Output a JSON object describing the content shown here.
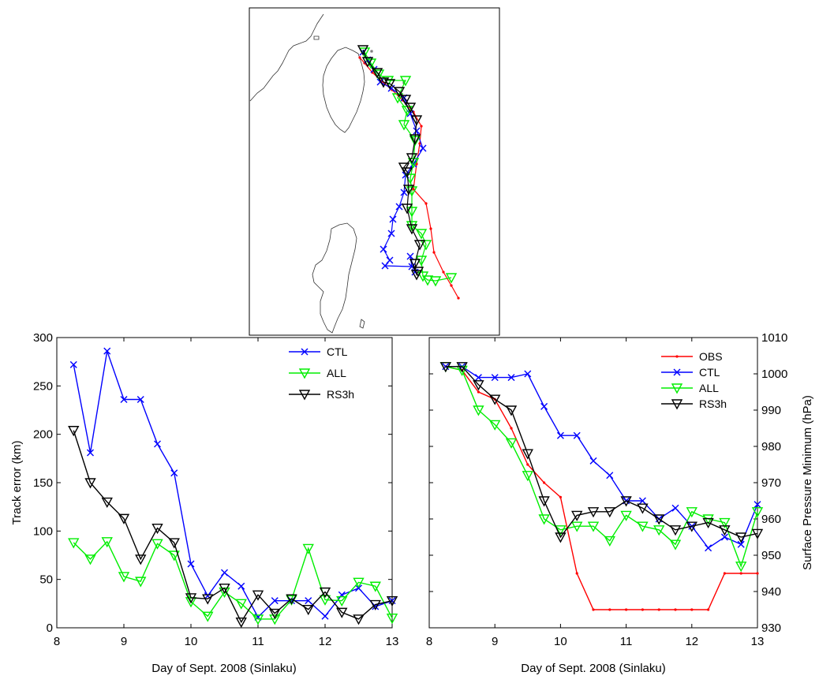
{
  "colors": {
    "obs": "#ff0000",
    "ctl": "#0000ff",
    "all": "#00ee00",
    "rs3h": "#000000"
  },
  "chart_data": [
    {
      "type": "map",
      "description_only": false,
      "series": [
        {
          "name": "OBS",
          "color": "#ff0000",
          "marker": "dot",
          "points": [
            [
              456,
              73
            ],
            [
              462,
              80
            ],
            [
              472,
              92
            ],
            [
              484,
              103
            ],
            [
              497,
              114
            ],
            [
              510,
              127
            ],
            [
              524,
              142
            ],
            [
              534,
              160
            ],
            [
              532,
              182
            ],
            [
              528,
              208
            ],
            [
              524,
              240
            ],
            [
              540,
              258
            ],
            [
              546,
              290
            ],
            [
              550,
              320
            ],
            [
              562,
              345
            ],
            [
              572,
              362
            ],
            [
              581,
              378
            ]
          ]
        },
        {
          "name": "CTL",
          "color": "#0000ff",
          "marker": "x",
          "points": [
            [
              460,
              66
            ],
            [
              466,
              76
            ],
            [
              474,
              88
            ],
            [
              482,
              104
            ],
            [
              496,
              112
            ],
            [
              512,
              124
            ],
            [
              520,
              144
            ],
            [
              528,
              166
            ],
            [
              536,
              188
            ],
            [
              524,
              208
            ],
            [
              514,
              222
            ],
            [
              512,
              244
            ],
            [
              506,
              262
            ],
            [
              498,
              278
            ],
            [
              496,
              296
            ],
            [
              486,
              316
            ],
            [
              494,
              330
            ],
            [
              488,
              337
            ],
            [
              522,
              338
            ],
            [
              520,
              325
            ],
            [
              526,
              345
            ]
          ]
        },
        {
          "name": "ALL",
          "color": "#00ee00",
          "marker": "triangle",
          "points": [
            [
              462,
              66
            ],
            [
              470,
              80
            ],
            [
              480,
              94
            ],
            [
              492,
              102
            ],
            [
              514,
              102
            ],
            [
              504,
              124
            ],
            [
              516,
              140
            ],
            [
              512,
              158
            ],
            [
              526,
              178
            ],
            [
              524,
              206
            ],
            [
              520,
              226
            ],
            [
              522,
              242
            ],
            [
              522,
              268
            ],
            [
              522,
              286
            ],
            [
              534,
              296
            ],
            [
              540,
              310
            ],
            [
              534,
              330
            ],
            [
              536,
              350
            ],
            [
              542,
              355
            ],
            [
              552,
              356
            ],
            [
              572,
              352
            ]
          ]
        },
        {
          "name": "RS3h",
          "color": "#000000",
          "marker": "triangle",
          "points": [
            [
              460,
              63
            ],
            [
              466,
              78
            ],
            [
              478,
              92
            ],
            [
              486,
              104
            ],
            [
              494,
              106
            ],
            [
              506,
              116
            ],
            [
              514,
              126
            ],
            [
              520,
              136
            ],
            [
              528,
              152
            ],
            [
              526,
              176
            ],
            [
              522,
              200
            ],
            [
              512,
              212
            ],
            [
              516,
              218
            ],
            [
              518,
              240
            ],
            [
              516,
              264
            ],
            [
              522,
              290
            ],
            [
              532,
              310
            ],
            [
              526,
              334
            ],
            [
              528,
              348
            ],
            [
              530,
              344
            ]
          ]
        }
      ]
    },
    {
      "type": "line",
      "xlabel": "Day of Sept. 2008 (Sinlaku)",
      "ylabel": "Track error (km)",
      "xlim": [
        8,
        13
      ],
      "ylim": [
        0,
        300
      ],
      "xticks": [
        8,
        9,
        10,
        11,
        12,
        13
      ],
      "yticks": [
        0,
        50,
        100,
        150,
        200,
        250,
        300
      ],
      "legend": "top-right",
      "series": [
        {
          "name": "CTL",
          "color": "#0000ff",
          "marker": "x",
          "x": [
            8.25,
            8.5,
            8.75,
            9.0,
            9.25,
            9.5,
            9.75,
            10.0,
            10.25,
            10.5,
            10.75,
            11.0,
            11.25,
            11.5,
            11.75,
            12.0,
            12.25,
            12.5,
            12.75,
            13.0
          ],
          "y": [
            272,
            181,
            286,
            236,
            236,
            190,
            160,
            66,
            33,
            57,
            43,
            11,
            28,
            28,
            28,
            12,
            34,
            41,
            22,
            28
          ]
        },
        {
          "name": "ALL",
          "color": "#00ee00",
          "marker": "triangle",
          "x": [
            8.25,
            8.5,
            8.75,
            9.0,
            9.25,
            9.5,
            9.75,
            10.0,
            10.25,
            10.5,
            10.75,
            11.0,
            11.25,
            11.5,
            11.75,
            12.0,
            12.25,
            12.5,
            12.75,
            13.0
          ],
          "y": [
            88,
            71,
            89,
            53,
            48,
            87,
            75,
            27,
            12,
            37,
            25,
            9,
            9,
            29,
            82,
            29,
            28,
            47,
            43,
            10
          ]
        },
        {
          "name": "RS3h",
          "color": "#000000",
          "marker": "triangle",
          "x": [
            8.25,
            8.5,
            8.75,
            9.0,
            9.25,
            9.5,
            9.75,
            10.0,
            10.25,
            10.5,
            10.75,
            11.0,
            11.25,
            11.5,
            11.75,
            12.0,
            12.25,
            12.5,
            12.75,
            13.0
          ],
          "y": [
            204,
            150,
            130,
            113,
            71,
            103,
            88,
            31,
            30,
            41,
            6,
            34,
            15,
            30,
            19,
            37,
            16,
            9,
            24,
            28
          ]
        }
      ]
    },
    {
      "type": "line",
      "xlabel": "Day of Sept. 2008 (Sinlaku)",
      "ylabel": "Surface Pressure Minimum (hPa)",
      "xlim": [
        8,
        13
      ],
      "ylim": [
        930,
        1010
      ],
      "xticks": [
        8,
        9,
        10,
        11,
        12,
        13
      ],
      "yticks": [
        930,
        940,
        950,
        960,
        970,
        980,
        990,
        1000,
        1010
      ],
      "legend": "top-right",
      "series": [
        {
          "name": "OBS",
          "color": "#ff0000",
          "marker": "dot",
          "x": [
            8.25,
            8.5,
            8.75,
            9.0,
            9.25,
            9.5,
            9.75,
            10.0,
            10.25,
            10.5,
            10.75,
            11.0,
            11.25,
            11.5,
            11.75,
            12.0,
            12.25,
            12.5,
            12.75,
            13.0
          ],
          "y": [
            1002,
            1001,
            995,
            993,
            985,
            975,
            970,
            966,
            945,
            935,
            935,
            935,
            935,
            935,
            935,
            935,
            935,
            945,
            945,
            945
          ]
        },
        {
          "name": "CTL",
          "color": "#0000ff",
          "marker": "x",
          "x": [
            8.25,
            8.5,
            8.75,
            9.0,
            9.25,
            9.5,
            9.75,
            10.0,
            10.25,
            10.5,
            10.75,
            11.0,
            11.25,
            11.5,
            11.75,
            12.0,
            12.25,
            12.5,
            12.75,
            13.0
          ],
          "y": [
            1002,
            1002,
            999,
            999,
            999,
            1000,
            991,
            983,
            983,
            976,
            972,
            965,
            965,
            960,
            963,
            958,
            952,
            955,
            953,
            964
          ]
        },
        {
          "name": "ALL",
          "color": "#00ee00",
          "marker": "triangle",
          "x": [
            8.25,
            8.5,
            8.75,
            9.0,
            9.25,
            9.5,
            9.75,
            10.0,
            10.25,
            10.5,
            10.75,
            11.0,
            11.25,
            11.5,
            11.75,
            12.0,
            12.25,
            12.5,
            12.75,
            13.0
          ],
          "y": [
            1002,
            1001,
            990,
            986,
            981,
            972,
            960,
            957,
            958,
            958,
            954,
            961,
            958,
            957,
            953,
            962,
            960,
            959,
            947,
            962
          ]
        },
        {
          "name": "RS3h",
          "color": "#000000",
          "marker": "triangle",
          "x": [
            8.25,
            8.5,
            8.75,
            9.0,
            9.25,
            9.5,
            9.75,
            10.0,
            10.25,
            10.5,
            10.75,
            11.0,
            11.25,
            11.5,
            11.75,
            12.0,
            12.25,
            12.5,
            12.75,
            13.0
          ],
          "y": [
            1002,
            1002,
            997,
            993,
            990,
            978,
            965,
            955,
            961,
            962,
            962,
            965,
            963,
            960,
            957,
            958,
            959,
            957,
            955,
            956
          ]
        }
      ]
    }
  ]
}
